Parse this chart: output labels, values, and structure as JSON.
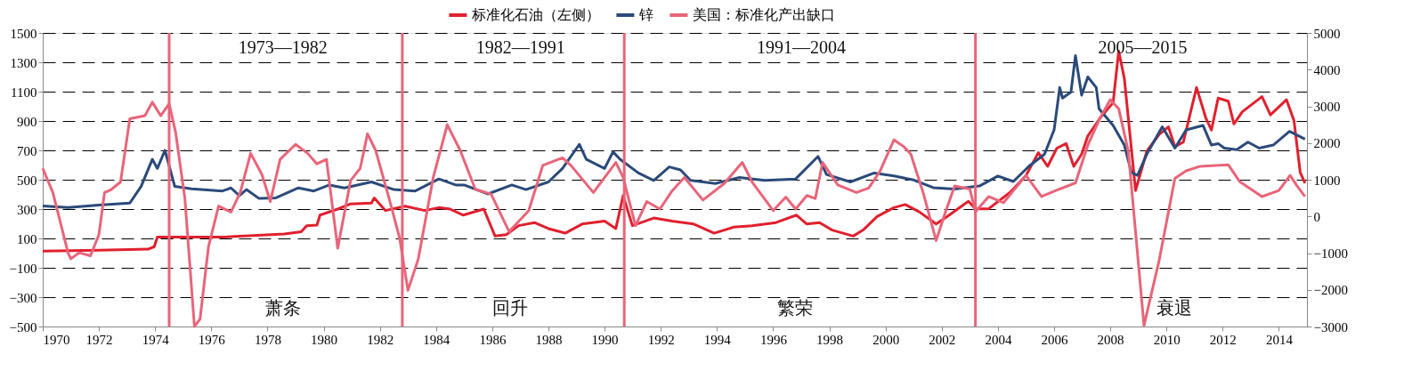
{
  "chart_data": {
    "type": "line",
    "xlim": [
      1970,
      2015
    ],
    "xticks": [
      1970,
      1972,
      1974,
      1976,
      1978,
      1980,
      1982,
      1984,
      1986,
      1988,
      1990,
      1992,
      1994,
      1996,
      1998,
      2000,
      2002,
      2004,
      2006,
      2008,
      2010,
      2012,
      2014
    ],
    "ylim": [
      -500,
      1500
    ],
    "yticks": [
      -500,
      -300,
      -100,
      100,
      300,
      500,
      700,
      900,
      1100,
      1300,
      1500
    ],
    "y2lim": [
      -3000,
      5000
    ],
    "y2ticks": [
      -3000,
      -2000,
      -1000,
      0,
      1000,
      2000,
      3000,
      4000,
      5000
    ],
    "grid": "y",
    "legend": "top",
    "series": [
      {
        "name": "标准化石油（左侧）",
        "color": "#e0202e",
        "x": [
          1970.0,
          1972.0,
          1973.75,
          1973.97,
          1974.08,
          1976.4,
          1978.6,
          1979.2,
          1979.4,
          1979.76,
          1979.87,
          1980.5,
          1980.96,
          1981.7,
          1981.8,
          1982.2,
          1982.9,
          1983.6,
          1984.1,
          1984.5,
          1984.97,
          1985.7,
          1986.1,
          1986.5,
          1986.94,
          1987.5,
          1988.0,
          1988.6,
          1989.2,
          1990.0,
          1990.4,
          1990.66,
          1990.99,
          1991.75,
          1992.4,
          1993.17,
          1993.9,
          1994.6,
          1995.25,
          1996.1,
          1996.83,
          1997.2,
          1997.65,
          1998.1,
          1998.85,
          1999.2,
          1999.7,
          2000.3,
          2000.7,
          2001.2,
          2001.8,
          2002.2,
          2002.95,
          2003.2,
          2003.67,
          2004.44,
          2005.0,
          2005.44,
          2005.77,
          2006.1,
          2006.43,
          2006.7,
          2006.98,
          2007.2,
          2007.64,
          2008.1,
          2008.3,
          2008.5,
          2008.9,
          2009.3,
          2009.74,
          2010.07,
          2010.3,
          2010.6,
          2011.07,
          2011.4,
          2011.6,
          2011.84,
          2012.2,
          2012.4,
          2012.7,
          2013.4,
          2013.7,
          2014.27,
          2014.54,
          2014.76,
          2014.93
        ],
        "values": [
          13,
          19,
          27,
          44,
          109,
          109,
          130,
          146,
          187,
          191,
          259,
          300,
          335,
          341,
          376,
          290,
          320,
          290,
          310,
          300,
          259,
          300,
          116,
          126,
          187,
          208,
          167,
          136,
          198,
          218,
          167,
          392,
          187,
          239,
          218,
          198,
          136,
          177,
          187,
          208,
          259,
          198,
          208,
          157,
          116,
          157,
          249,
          310,
          331,
          281,
          198,
          250,
          353,
          302,
          302,
          415,
          529,
          684,
          591,
          715,
          746,
          591,
          674,
          798,
          921,
          1025,
          1376,
          1190,
          426,
          694,
          808,
          860,
          725,
          756,
          1128,
          921,
          839,
          1056,
          1035,
          880,
          963,
          1066,
          942,
          1045,
          901,
          550,
          477
        ]
      },
      {
        "name": "锌",
        "color": "#2b4a7a",
        "x": [
          1970.0,
          1970.9,
          1972.0,
          1973.1,
          1973.5,
          1973.9,
          1974.08,
          1974.35,
          1974.7,
          1975.3,
          1976.4,
          1976.7,
          1977.0,
          1977.25,
          1977.7,
          1978.3,
          1979.1,
          1979.65,
          1980.2,
          1980.74,
          1981.7,
          1982.5,
          1983.26,
          1984.1,
          1984.7,
          1985.0,
          1985.85,
          1986.7,
          1987.2,
          1988.0,
          1988.5,
          1989.1,
          1989.35,
          1990.0,
          1990.3,
          1990.55,
          1991.2,
          1991.75,
          1992.3,
          1992.7,
          1993.06,
          1993.94,
          1994.8,
          1995.7,
          1996.8,
          1997.6,
          1997.9,
          1998.75,
          1999.6,
          2000.3,
          2001.0,
          2001.7,
          2002.46,
          2003.34,
          2004.0,
          2004.55,
          2005.1,
          2005.66,
          2006.0,
          2006.2,
          2006.3,
          2006.6,
          2006.76,
          2006.98,
          2007.2,
          2007.5,
          2007.6,
          2008.1,
          2008.5,
          2008.75,
          2008.97,
          2009.3,
          2009.85,
          2010.3,
          2010.7,
          2011.3,
          2011.6,
          2011.84,
          2012.06,
          2012.5,
          2012.9,
          2013.3,
          2013.8,
          2014.38,
          2014.93
        ],
        "values": [
          321,
          310,
          327,
          341,
          454,
          639,
          577,
          700,
          454,
          438,
          423,
          444,
          392,
          433,
          372,
          376,
          444,
          423,
          464,
          444,
          485,
          433,
          423,
          505,
          464,
          464,
          403,
          464,
          433,
          485,
          577,
          741,
          639,
          577,
          690,
          639,
          546,
          495,
          587,
          567,
          495,
          474,
          515,
          495,
          505,
          659,
          536,
          485,
          546,
          526,
          498,
          446,
          436,
          457,
          525,
          488,
          591,
          674,
          839,
          1128,
          1056,
          1097,
          1345,
          1076,
          1200,
          1128,
          983,
          870,
          736,
          550,
          529,
          674,
          860,
          715,
          839,
          870,
          736,
          746,
          715,
          705,
          756,
          715,
          736,
          829,
          777
        ]
      },
      {
        "name": "美国：标准化产出缺口",
        "color": "#e8657a",
        "axis": "y2",
        "x": [
          1970.0,
          1970.36,
          1970.9,
          1971.0,
          1971.3,
          1971.7,
          1972.0,
          1972.2,
          1972.44,
          1972.77,
          1973.1,
          1973.64,
          1973.9,
          1974.2,
          1974.5,
          1974.73,
          1975.06,
          1975.4,
          1975.6,
          1975.9,
          1976.26,
          1976.7,
          1977.03,
          1977.4,
          1977.8,
          1978.1,
          1978.45,
          1979.0,
          1979.43,
          1979.76,
          1980.1,
          1980.5,
          1980.96,
          1981.3,
          1981.56,
          1981.85,
          1982.33,
          1982.7,
          1983.0,
          1983.37,
          1983.9,
          1984.4,
          1984.86,
          1985.4,
          1985.96,
          1986.6,
          1987.3,
          1987.8,
          1988.5,
          1988.8,
          1989.6,
          1990.4,
          1990.66,
          1991.1,
          1991.5,
          1991.97,
          1992.4,
          1992.84,
          1993.5,
          1994.26,
          1994.9,
          1995.25,
          1996.0,
          1996.45,
          1996.8,
          1997.2,
          1997.5,
          1997.76,
          1998.3,
          1998.96,
          1999.4,
          1999.8,
          2000.3,
          2000.65,
          2000.9,
          2001.35,
          2001.8,
          2002.1,
          2002.46,
          2003.0,
          2003.2,
          2003.67,
          2004.2,
          2005.0,
          2005.55,
          2006.2,
          2006.76,
          2007.2,
          2007.64,
          2008.0,
          2008.3,
          2008.64,
          2009.2,
          2009.74,
          2010.3,
          2010.7,
          2011.2,
          2012.2,
          2012.6,
          2013.4,
          2014.0,
          2014.4,
          2014.65,
          2014.93
        ],
        "values": [
          1308,
          651,
          -990,
          -1154,
          -990,
          -1072,
          -497,
          651,
          733,
          939,
          2662,
          2744,
          3113,
          2744,
          3072,
          2292,
          487,
          -3000,
          -2795,
          -825,
          282,
          118,
          651,
          1718,
          1144,
          405,
          1554,
          1964,
          1718,
          1431,
          1554,
          -866,
          980,
          1308,
          2251,
          1800,
          487,
          -579,
          -2015,
          -1154,
          1062,
          2497,
          1800,
          733,
          610,
          -415,
          159,
          1390,
          1595,
          1390,
          651,
          1472,
          1062,
          -251,
          405,
          200,
          692,
          1062,
          446,
          897,
          1472,
          939,
          159,
          528,
          200,
          569,
          487,
          1472,
          856,
          651,
          774,
          1226,
          2087,
          1900,
          1696,
          622,
          -658,
          44,
          829,
          746,
          127,
          540,
          374,
          1118,
          540,
          746,
          911,
          1944,
          2687,
          3183,
          2935,
          1779,
          -2971,
          -1195,
          1035,
          1242,
          1366,
          1407,
          953,
          540,
          705,
          1118,
          829,
          540
        ]
      }
    ],
    "ref_lines": [
      {
        "axis": "x",
        "value": 1974.5,
        "color": "#e8657a"
      },
      {
        "axis": "x",
        "value": 1982.8,
        "color": "#e8657a"
      },
      {
        "axis": "x",
        "value": 1990.7,
        "color": "#e8657a"
      },
      {
        "axis": "x",
        "value": 2003.2,
        "color": "#e8657a"
      }
    ],
    "annotations": [
      "1973—1982",
      "1982—1991",
      "1991—2004",
      "2005—2015",
      "萧条",
      "回升",
      "繁荣",
      "衰退"
    ]
  }
}
